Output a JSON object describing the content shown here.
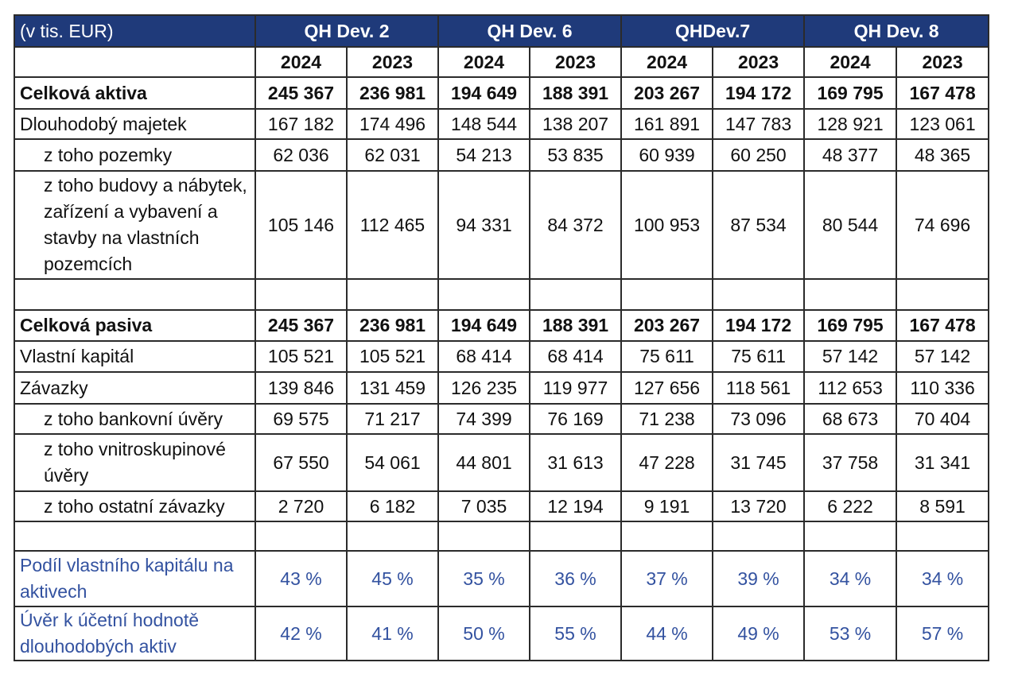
{
  "header": {
    "unit": "(v tis. EUR)",
    "groups": [
      "QH Dev. 2",
      "QH Dev. 6",
      "QHDev.7",
      "QH Dev. 8"
    ]
  },
  "years": [
    "2024",
    "2023",
    "2024",
    "2023",
    "2024",
    "2023",
    "2024",
    "2023"
  ],
  "rows": [
    {
      "label": "Celková aktiva",
      "values": [
        "245 367",
        "236 981",
        "194 649",
        "188 391",
        "203 267",
        "194 172",
        "169 795",
        "167 478"
      ]
    },
    {
      "label": "Dlouhodobý majetek",
      "values": [
        "167 182",
        "174 496",
        "148 544",
        "138 207",
        "161 891",
        "147 783",
        "128 921",
        "123 061"
      ]
    },
    {
      "label": "z toho pozemky",
      "values": [
        "62 036",
        "62 031",
        "54 213",
        "53 835",
        "60 939",
        "60 250",
        "48 377",
        "48 365"
      ]
    },
    {
      "label": "z toho budovy a nábytek, zařízení a vybavení a stavby na vlastních pozemcích",
      "values": [
        "105 146",
        "112 465",
        "94 331",
        "84 372",
        "100 953",
        "87 534",
        "80 544",
        "74 696"
      ]
    },
    {
      "label": "Celková pasiva",
      "values": [
        "245 367",
        "236 981",
        "194 649",
        "188 391",
        "203 267",
        "194 172",
        "169 795",
        "167 478"
      ]
    },
    {
      "label": "Vlastní kapitál",
      "values": [
        "105 521",
        "105 521",
        "68 414",
        "68 414",
        "75 611",
        "75 611",
        "57 142",
        "57 142"
      ]
    },
    {
      "label": "Závazky",
      "values": [
        "139 846",
        "131 459",
        "126 235",
        "119 977",
        "127 656",
        "118 561",
        "112 653",
        "110 336"
      ]
    },
    {
      "label": "z toho bankovní úvěry",
      "values": [
        "69 575",
        "71 217",
        "74 399",
        "76 169",
        "71 238",
        "73 096",
        "68 673",
        "70 404"
      ]
    },
    {
      "label": "z toho vnitroskupinové úvěry",
      "values": [
        "67 550",
        "54 061",
        "44 801",
        "31 613",
        "47 228",
        "31 745",
        "37 758",
        "31 341"
      ]
    },
    {
      "label": "z toho ostatní závazky",
      "values": [
        "2 720",
        "6 182",
        "7 035",
        "12 194",
        "9 191",
        "13 720",
        "6 222",
        "8 591"
      ]
    },
    {
      "label": "Podíl vlastního kapitálu na aktivech",
      "values": [
        "43 %",
        "45 %",
        "35 %",
        "36 %",
        "37 %",
        "39 %",
        "34 %",
        "34 %"
      ]
    },
    {
      "label": "Úvěr k účetní hodnotě dlouhodobých aktiv",
      "values": [
        "42 %",
        "41 %",
        "50 %",
        "55 %",
        "44 %",
        "49 %",
        "53 %",
        "57 %"
      ]
    }
  ],
  "colors": {
    "header_bg": "#1f3a7a",
    "header_text": "#ffffff",
    "ratio_text": "#3352a0",
    "border": "#2b2b2b"
  }
}
